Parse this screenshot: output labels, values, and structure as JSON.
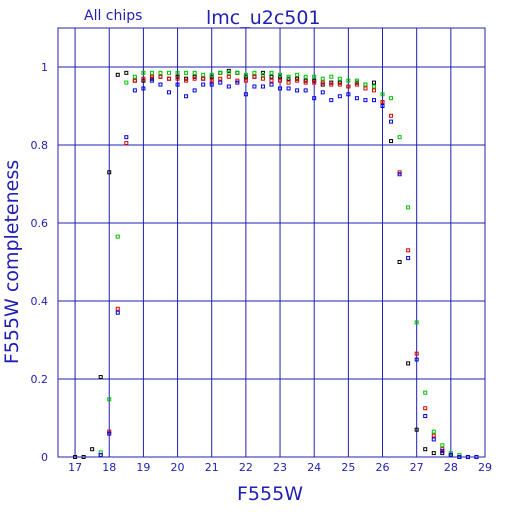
{
  "chart_data": {
    "type": "scatter",
    "title": "lmc_u2c501",
    "subtitle": "All chips",
    "xlabel": "F555W",
    "ylabel": "F555W completeness",
    "xlim": [
      16.5,
      29
    ],
    "ylim": [
      0,
      1.1
    ],
    "xticks": [
      "17",
      "18",
      "19",
      "20",
      "21",
      "22",
      "23",
      "24",
      "25",
      "26",
      "27",
      "28",
      "29"
    ],
    "yticks": [
      "0",
      "0.2",
      "0.4",
      "0.6",
      "0.8",
      "1"
    ],
    "grid": true,
    "colors": {
      "axis": "#1f1fb4",
      "black": "#000000",
      "red": "#e00000",
      "green": "#00c000",
      "blue": "#0000e0"
    },
    "series": [
      {
        "color": "#000000",
        "x": [
          17.0,
          17.25,
          17.5,
          17.75,
          18.0,
          18.25,
          18.5,
          18.75,
          19.0,
          19.25,
          19.5,
          19.75,
          20.0,
          20.25,
          20.5,
          20.75,
          21.0,
          21.25,
          21.5,
          21.75,
          22.0,
          22.25,
          22.5,
          22.75,
          23.0,
          23.25,
          23.5,
          23.75,
          24.0,
          24.25,
          24.5,
          24.75,
          25.0,
          25.25,
          25.5,
          25.75,
          26.0,
          26.25,
          26.5,
          26.75,
          27.0,
          27.25,
          27.5,
          27.75,
          28.0,
          28.25,
          28.5,
          28.75
        ],
        "y": [
          0.0,
          0.0,
          0.02,
          0.205,
          0.73,
          0.98,
          0.985,
          0.965,
          0.965,
          0.97,
          0.975,
          0.97,
          0.975,
          0.97,
          0.975,
          0.97,
          0.975,
          0.985,
          0.99,
          0.985,
          0.975,
          0.975,
          0.985,
          0.975,
          0.975,
          0.97,
          0.97,
          0.965,
          0.965,
          0.955,
          0.96,
          0.96,
          0.95,
          0.96,
          0.955,
          0.96,
          0.91,
          0.81,
          0.5,
          0.24,
          0.07,
          0.02,
          0.01,
          0.01,
          0.005,
          0.0,
          0.0,
          0.0
        ]
      },
      {
        "color": "#e00000",
        "x": [
          17.75,
          18.0,
          18.25,
          18.5,
          18.75,
          19.0,
          19.25,
          19.5,
          19.75,
          20.0,
          20.25,
          20.5,
          20.75,
          21.0,
          21.25,
          21.5,
          21.75,
          22.0,
          22.25,
          22.5,
          22.75,
          23.0,
          23.25,
          23.5,
          23.75,
          24.0,
          24.25,
          24.5,
          24.75,
          25.0,
          25.25,
          25.5,
          25.75,
          26.0,
          26.25,
          26.5,
          26.75,
          27.0,
          27.25,
          27.5,
          27.75,
          28.0,
          28.25,
          28.5,
          28.75
        ],
        "y": [
          0.005,
          0.065,
          0.38,
          0.805,
          0.965,
          0.97,
          0.975,
          0.975,
          0.97,
          0.97,
          0.965,
          0.97,
          0.97,
          0.965,
          0.97,
          0.975,
          0.965,
          0.965,
          0.975,
          0.97,
          0.965,
          0.965,
          0.96,
          0.965,
          0.96,
          0.96,
          0.96,
          0.955,
          0.955,
          0.95,
          0.955,
          0.945,
          0.94,
          0.91,
          0.875,
          0.73,
          0.53,
          0.265,
          0.125,
          0.055,
          0.02,
          0.005,
          0.0,
          0.0,
          0.0
        ]
      },
      {
        "color": "#00c000",
        "x": [
          17.75,
          18.0,
          18.25,
          18.5,
          18.75,
          19.0,
          19.25,
          19.5,
          19.75,
          20.0,
          20.25,
          20.5,
          20.75,
          21.0,
          21.25,
          21.5,
          21.75,
          22.0,
          22.25,
          22.5,
          22.75,
          23.0,
          23.25,
          23.5,
          23.75,
          24.0,
          24.25,
          24.5,
          24.75,
          25.0,
          25.25,
          25.5,
          25.75,
          26.0,
          26.25,
          26.5,
          26.75,
          27.0,
          27.25,
          27.5,
          27.75,
          28.0,
          28.25,
          28.5,
          28.75
        ],
        "y": [
          0.012,
          0.148,
          0.565,
          0.96,
          0.975,
          0.985,
          0.985,
          0.985,
          0.985,
          0.985,
          0.985,
          0.985,
          0.98,
          0.98,
          0.985,
          0.985,
          0.985,
          0.98,
          0.985,
          0.98,
          0.985,
          0.98,
          0.975,
          0.98,
          0.975,
          0.975,
          0.97,
          0.975,
          0.97,
          0.965,
          0.965,
          0.955,
          0.95,
          0.93,
          0.92,
          0.82,
          0.64,
          0.345,
          0.165,
          0.065,
          0.03,
          0.01,
          0.005,
          0.0,
          0.0
        ]
      },
      {
        "color": "#0000e0",
        "x": [
          17.75,
          18.0,
          18.25,
          18.5,
          18.75,
          19.0,
          19.25,
          19.5,
          19.75,
          20.0,
          20.25,
          20.5,
          20.75,
          21.0,
          21.25,
          21.5,
          21.75,
          22.0,
          22.25,
          22.5,
          22.75,
          23.0,
          23.25,
          23.5,
          23.75,
          24.0,
          24.25,
          24.5,
          24.75,
          25.0,
          25.25,
          25.5,
          25.75,
          26.0,
          26.25,
          26.5,
          26.75,
          27.0,
          27.25,
          27.5,
          27.75,
          28.0,
          28.25,
          28.5,
          28.75
        ],
        "y": [
          0.005,
          0.06,
          0.37,
          0.82,
          0.94,
          0.945,
          0.965,
          0.955,
          0.935,
          0.955,
          0.925,
          0.94,
          0.955,
          0.955,
          0.96,
          0.95,
          0.96,
          0.93,
          0.95,
          0.95,
          0.955,
          0.945,
          0.945,
          0.94,
          0.94,
          0.92,
          0.935,
          0.915,
          0.925,
          0.93,
          0.92,
          0.915,
          0.915,
          0.9,
          0.86,
          0.725,
          0.51,
          0.25,
          0.105,
          0.045,
          0.015,
          0.005,
          0.0,
          0.0,
          0.0
        ]
      }
    ]
  }
}
